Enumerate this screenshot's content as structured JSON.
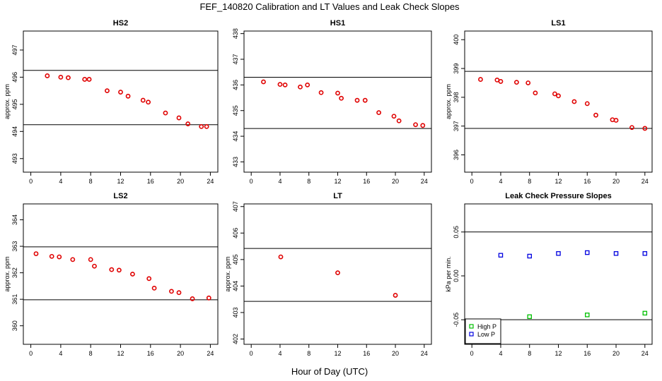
{
  "figure": {
    "title": "FEF_140820  Calibration and LT Values and Leak Check Slopes",
    "xlabel": "Hour of Day (UTC)"
  },
  "colors": {
    "cal": "#e00000",
    "high_p": "#00c000",
    "low_p": "#0000e0",
    "axis": "#000000"
  },
  "chart_data": [
    {
      "type": "scatter",
      "title": "HS2",
      "ylabel": "approx. ppm",
      "xlim": [
        -1,
        25
      ],
      "ylim": [
        492.5,
        497.7
      ],
      "xticks": [
        0,
        4,
        8,
        12,
        16,
        20,
        24
      ],
      "yticks": [
        493,
        494,
        495,
        496,
        497
      ],
      "hlines": [
        496.25,
        494.25
      ],
      "series": [
        {
          "marker": "circle",
          "color": "#e00000",
          "x": [
            2.2,
            4.0,
            5.0,
            7.2,
            7.8,
            10.2,
            12.0,
            13.0,
            15.0,
            15.7,
            18.0,
            19.8,
            21.0,
            22.8,
            23.5
          ],
          "y": [
            496.05,
            496.0,
            495.98,
            495.92,
            495.92,
            495.5,
            495.45,
            495.3,
            495.15,
            495.08,
            494.68,
            494.5,
            494.28,
            494.18,
            494.18
          ]
        }
      ]
    },
    {
      "type": "scatter",
      "title": "HS1",
      "ylabel": "",
      "xlim": [
        -1,
        25
      ],
      "ylim": [
        432.6,
        438.1
      ],
      "xticks": [
        0,
        4,
        8,
        12,
        16,
        20,
        24
      ],
      "yticks": [
        433,
        434,
        435,
        436,
        437,
        438
      ],
      "hlines": [
        436.3,
        434.3
      ],
      "series": [
        {
          "marker": "circle",
          "color": "#e00000",
          "x": [
            1.7,
            4.0,
            4.7,
            6.8,
            7.8,
            9.7,
            12.0,
            12.5,
            14.7,
            15.8,
            17.7,
            19.8,
            20.5,
            22.8,
            23.8
          ],
          "y": [
            436.12,
            436.02,
            436.0,
            435.92,
            436.0,
            435.7,
            435.68,
            435.48,
            435.4,
            435.4,
            434.92,
            434.78,
            434.6,
            434.45,
            434.42
          ]
        }
      ]
    },
    {
      "type": "scatter",
      "title": "LS1",
      "ylabel": "approx. ppm",
      "xlim": [
        -1,
        25
      ],
      "ylim": [
        395.4,
        400.3
      ],
      "xticks": [
        0,
        4,
        8,
        12,
        16,
        20,
        24
      ],
      "yticks": [
        396,
        397,
        398,
        399,
        400
      ],
      "hlines": [
        398.9,
        396.92
      ],
      "series": [
        {
          "marker": "circle",
          "color": "#e00000",
          "x": [
            1.2,
            3.5,
            4.0,
            6.2,
            7.8,
            8.8,
            11.5,
            12.0,
            14.2,
            16.0,
            17.2,
            19.5,
            20.0,
            22.2,
            24.0
          ],
          "y": [
            398.62,
            398.6,
            398.55,
            398.52,
            398.5,
            398.15,
            398.12,
            398.05,
            397.85,
            397.78,
            397.38,
            397.22,
            397.2,
            396.95,
            396.92
          ]
        }
      ]
    },
    {
      "type": "scatter",
      "title": "LS2",
      "ylabel": "approx. ppm",
      "xlim": [
        -1,
        25
      ],
      "ylim": [
        359.3,
        364.6
      ],
      "xticks": [
        0,
        4,
        8,
        12,
        16,
        20,
        24
      ],
      "yticks": [
        360,
        361,
        362,
        363,
        364
      ],
      "hlines": [
        362.98,
        360.98
      ],
      "series": [
        {
          "marker": "circle",
          "color": "#e00000",
          "x": [
            0.7,
            2.8,
            3.8,
            5.6,
            8.0,
            8.5,
            10.8,
            11.8,
            13.6,
            15.8,
            16.5,
            18.8,
            19.8,
            21.6,
            23.8
          ],
          "y": [
            362.72,
            362.62,
            362.6,
            362.5,
            362.5,
            362.25,
            362.12,
            362.1,
            361.95,
            361.78,
            361.42,
            361.3,
            361.25,
            361.02,
            361.05
          ]
        }
      ]
    },
    {
      "type": "scatter",
      "title": "LT",
      "ylabel": "approx. ppm",
      "xlim": [
        -1,
        25
      ],
      "ylim": [
        401.8,
        407.1
      ],
      "xticks": [
        0,
        4,
        8,
        12,
        16,
        20,
        24
      ],
      "yticks": [
        402,
        403,
        404,
        405,
        406,
        407
      ],
      "hlines": [
        405.42,
        403.42
      ],
      "series": [
        {
          "marker": "circle",
          "color": "#e00000",
          "x": [
            4.1,
            12.0,
            20.0
          ],
          "y": [
            405.1,
            404.5,
            403.65
          ]
        }
      ]
    },
    {
      "type": "scatter",
      "title": "Leak Check Pressure Slopes",
      "ylabel": "kPa per min.",
      "xlim": [
        -1,
        25
      ],
      "ylim": [
        -0.078,
        0.082
      ],
      "xticks": [
        0,
        4,
        8,
        12,
        16,
        20,
        24
      ],
      "yticks": [
        -0.05,
        0.0,
        0.05
      ],
      "ytick_labels": [
        "-0.05",
        "0.00",
        "0.05"
      ],
      "hlines": [
        0.05,
        -0.05
      ],
      "legend": {
        "position": "bottom-left",
        "entries": [
          {
            "name": "High P",
            "color": "#00c000"
          },
          {
            "name": "Low P",
            "color": "#0000e0"
          }
        ]
      },
      "series": [
        {
          "name": "High P",
          "marker": "square",
          "color": "#00c000",
          "x": [
            8,
            16,
            24
          ],
          "y": [
            -0.0465,
            -0.0445,
            -0.0425
          ]
        },
        {
          "name": "Low P",
          "marker": "square",
          "color": "#0000e0",
          "x": [
            4,
            8,
            12,
            16,
            20,
            24
          ],
          "y": [
            0.0235,
            0.0225,
            0.0255,
            0.0265,
            0.0255,
            0.0255
          ]
        }
      ]
    }
  ]
}
